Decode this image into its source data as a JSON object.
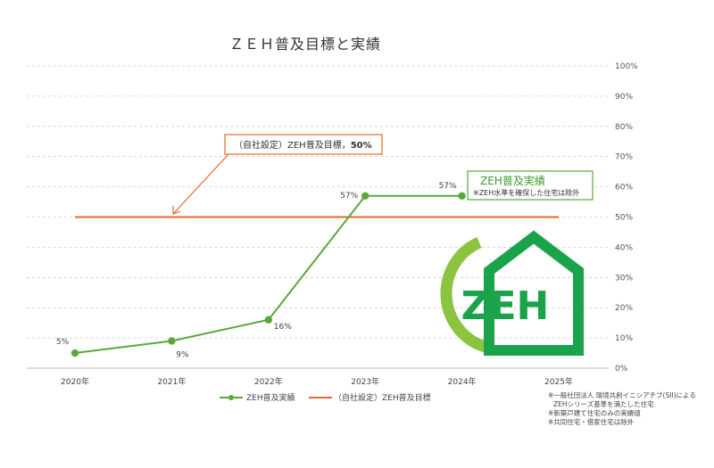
{
  "chart_data": {
    "type": "line",
    "title": "ＺＥＨ普及目標と実績",
    "categories": [
      "2020年",
      "2021年",
      "2022年",
      "2023年",
      "2024年",
      "2025年"
    ],
    "ylim": [
      0,
      100
    ],
    "yticks": [
      "0%",
      "10%",
      "20%",
      "30%",
      "40%",
      "50%",
      "60%",
      "70%",
      "80%",
      "90%",
      "100%"
    ],
    "y_axis_side": "right",
    "grid": true,
    "series": [
      {
        "name": "ZEH普及実績",
        "color": "#5aa83a",
        "values": [
          5,
          9,
          16,
          57,
          57,
          null
        ],
        "labels": [
          "5%",
          "9%",
          "16%",
          "57%",
          "57%",
          ""
        ]
      },
      {
        "name": "（自社設定）ZEH普及目標",
        "color": "#e2692a",
        "values": [
          50,
          50,
          50,
          50,
          50,
          50
        ]
      }
    ],
    "annotations": {
      "target": {
        "text": "（自社設定）ZEH普及目標，",
        "value_text": "50%"
      },
      "actual": {
        "title": "ZEH普及実績",
        "subtitle": "※ZEH水準を確保した住宅は除外"
      }
    },
    "legend_position": "bottom-center",
    "notes": [
      "※一般社団法人 環境共創イニシアチブ(SII)による",
      "ZEHシリーズ基準を満たした住宅",
      "※新築戸建て住宅のみの実績値",
      "※共同住宅・借家住宅は除外"
    ]
  },
  "logo": {
    "text": "ZEH",
    "icon": "zeh-house-logo",
    "color": "#1aa34a",
    "accent": "#8bc53f"
  }
}
